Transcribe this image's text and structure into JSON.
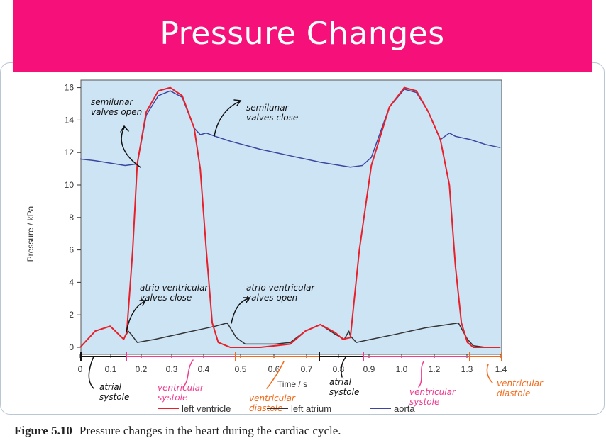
{
  "slide": {
    "title": "Pressure Changes",
    "figure_number": "Figure 5.10",
    "figure_caption": "Pressure changes in the heart during the cardiac cycle."
  },
  "colors": {
    "banner": "#f5107a",
    "plot_background": "#cde4f5",
    "left_ventricle": "#e8202a",
    "left_atrium": "#333333",
    "aorta": "#3c46a0",
    "annotation_black": "#111111",
    "annotation_pink": "#ee3d8f",
    "annotation_orange": "#f26b1d"
  },
  "chart_data": {
    "type": "line",
    "xlabel": "Time / s",
    "ylabel": "Pressure / kPa",
    "xlim": [
      0,
      1.4
    ],
    "ylim": [
      -0.5,
      16.5
    ],
    "x_ticks": [
      "0",
      "0.1",
      "0.2",
      "0.3",
      "0.4",
      "0.5",
      "0.6",
      "0.7",
      "0.8",
      "0.9",
      "1.0",
      "1.2",
      "1.3",
      "1.4"
    ],
    "y_ticks": [
      "0",
      "2",
      "4",
      "6",
      "8",
      "10",
      "12",
      "14",
      "16"
    ],
    "grid": false,
    "legend_position": "bottom",
    "series": [
      {
        "name": "left ventricle",
        "x": [
          0,
          0.05,
          0.1,
          0.145,
          0.155,
          0.175,
          0.19,
          0.22,
          0.26,
          0.3,
          0.34,
          0.38,
          0.4,
          0.42,
          0.44,
          0.46,
          0.5,
          0.55,
          0.6,
          0.65,
          0.7,
          0.75,
          0.8,
          0.85,
          0.875,
          0.9,
          0.93,
          0.97,
          1.03,
          1.08,
          1.12,
          1.16,
          1.2,
          1.23,
          1.25,
          1.27,
          1.29,
          1.31,
          1.35,
          1.4
        ],
        "y": [
          0,
          1,
          1.3,
          0.5,
          0.9,
          6,
          11.3,
          14.5,
          15.8,
          16,
          15.5,
          13.5,
          11,
          6,
          1.5,
          0.3,
          0,
          0,
          0,
          0.1,
          0.2,
          1,
          1.4,
          0.9,
          0.5,
          0.6,
          6,
          11.2,
          14.8,
          16,
          15.8,
          14.5,
          12.8,
          10,
          5,
          1.5,
          0.3,
          0,
          0,
          0
        ]
      },
      {
        "name": "left atrium",
        "x": [
          0,
          0.05,
          0.1,
          0.145,
          0.16,
          0.17,
          0.19,
          0.25,
          0.3,
          0.35,
          0.4,
          0.45,
          0.49,
          0.52,
          0.55,
          0.65,
          0.7,
          0.75,
          0.8,
          0.85,
          0.88,
          0.895,
          0.9,
          0.92,
          0.97,
          1.05,
          1.15,
          1.26,
          1.29,
          1.31,
          1.35,
          1.4
        ],
        "y": [
          0,
          1,
          1.3,
          0.5,
          1,
          0.8,
          0.3,
          0.5,
          0.7,
          0.9,
          1.1,
          1.3,
          1.5,
          0.6,
          0.2,
          0.2,
          0.3,
          1,
          1.4,
          0.8,
          0.5,
          1,
          0.7,
          0.3,
          0.5,
          0.8,
          1.2,
          1.5,
          0.5,
          0.1,
          0,
          0
        ]
      },
      {
        "name": "aorta",
        "x": [
          0,
          0.05,
          0.1,
          0.15,
          0.19,
          0.22,
          0.26,
          0.3,
          0.34,
          0.38,
          0.4,
          0.42,
          0.45,
          0.5,
          0.6,
          0.7,
          0.8,
          0.9,
          0.94,
          0.97,
          1.03,
          1.08,
          1.12,
          1.16,
          1.2,
          1.23,
          1.25,
          1.3,
          1.35,
          1.4
        ],
        "y": [
          11.6,
          11.5,
          11.35,
          11.2,
          11.3,
          14.3,
          15.5,
          15.8,
          15.4,
          13.5,
          13.1,
          13.2,
          13,
          12.7,
          12.2,
          11.8,
          11.4,
          11.1,
          11.2,
          11.7,
          14.8,
          15.9,
          15.7,
          14.5,
          12.8,
          13.2,
          13,
          12.8,
          12.5,
          12.3
        ]
      }
    ],
    "annotations": [
      {
        "text": "semilunar valves open",
        "x": 0.2,
        "y": 11.4
      },
      {
        "text": "semilunar valves close",
        "x": 0.43,
        "y": 13.1
      },
      {
        "text": "atrio ventricular valves close",
        "x": 0.19,
        "y": 0.6
      },
      {
        "text": "atrio ventricular valves open",
        "x": 0.54,
        "y": 1.5
      },
      {
        "text": "atrial systole",
        "x": 0.05,
        "y": -0.5
      },
      {
        "text": "ventricular systole",
        "x": 0.37,
        "y": -0.5
      },
      {
        "text": "ventricular diastole",
        "x": 0.62,
        "y": -0.5
      },
      {
        "text": "atrial systole",
        "x": 0.84,
        "y": -0.5
      },
      {
        "text": "ventricular systole",
        "x": 1.13,
        "y": -0.5
      },
      {
        "text": "ventricular diastole",
        "x": 1.42,
        "y": -0.5
      }
    ]
  }
}
